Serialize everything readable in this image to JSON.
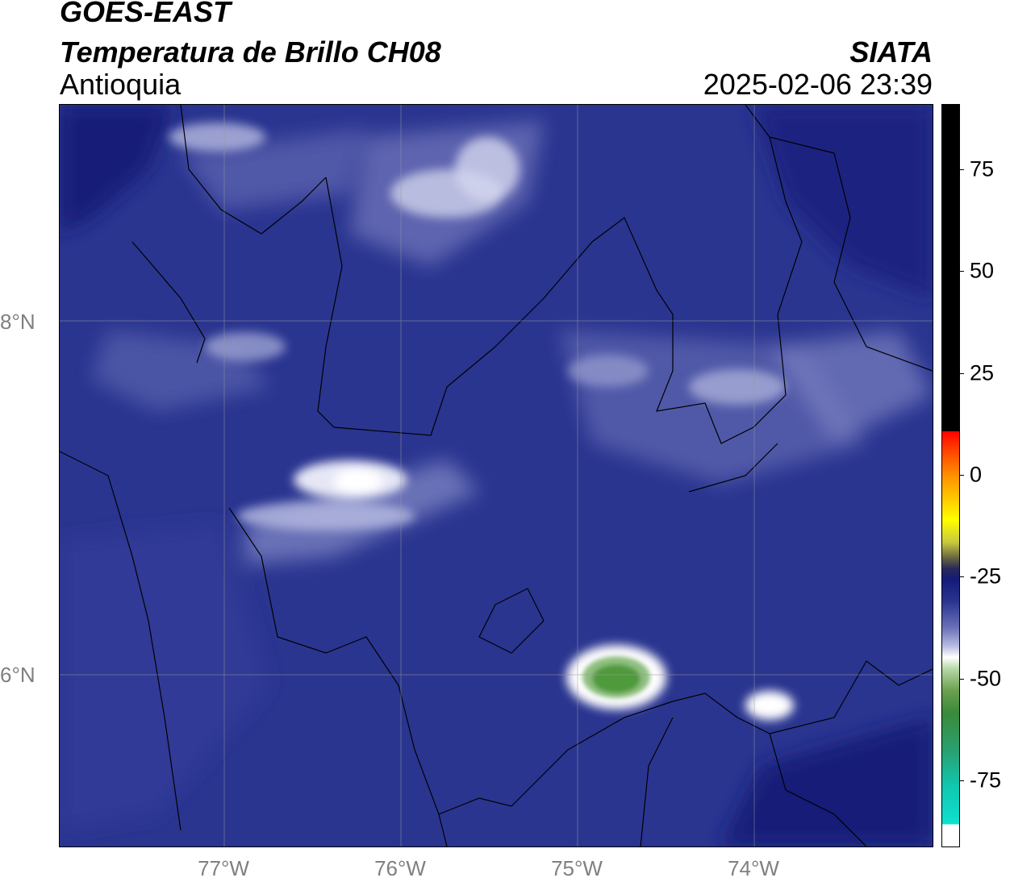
{
  "header": {
    "satellite": "GOES-EAST",
    "product": "Temperatura de Brillo CH08",
    "region": "Antioquia",
    "agency": "SIATA",
    "datetime": "2025-02-06 23:39"
  },
  "map": {
    "lat_labels": [
      "8°N",
      "6°N"
    ],
    "lon_labels": [
      "77°W",
      "76°W",
      "75°W",
      "74°W"
    ],
    "extent": {
      "lon": [
        -77.93,
        -72.98
      ],
      "lat": [
        5.03,
        9.23
      ]
    }
  },
  "colorbar": {
    "labels": [
      "75",
      "50",
      "25",
      "0",
      "-25",
      "-50",
      "-75"
    ],
    "values": [
      75,
      50,
      25,
      0,
      -25,
      -50,
      -75
    ],
    "range": [
      -91,
      91
    ],
    "colors": {
      "background": "#2a3590",
      "deep": "#141a78",
      "mid": "#4a53a8",
      "light": "#8c92c8",
      "white": "#ffffff",
      "green": "#4f9a3a",
      "cyan": "#10e0d0",
      "warm_black": "#000000",
      "red": "#ff0000",
      "yellow": "#ffff00"
    }
  }
}
